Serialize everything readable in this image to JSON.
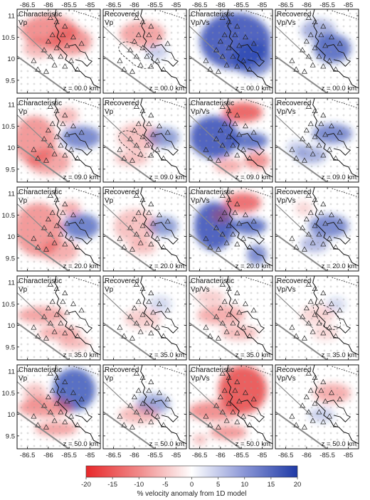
{
  "columns": [
    {
      "label_line1": "Characteristic",
      "label_line2": "Vp",
      "variant": "char_vp"
    },
    {
      "label_line1": "Recovered",
      "label_line2": "Vp",
      "variant": "rec_vp"
    },
    {
      "label_line1": "Characteristic",
      "label_line2": "Vp/Vs",
      "variant": "char_vpvs"
    },
    {
      "label_line1": "Recovered",
      "label_line2": "Vp/Vs",
      "variant": "rec_vpvs"
    }
  ],
  "rows": [
    {
      "depth_label": "z = 00.0 km"
    },
    {
      "depth_label": "z = 09.0 km"
    },
    {
      "depth_label": "z = 20.0 km"
    },
    {
      "depth_label": "z = 35.0 km"
    },
    {
      "depth_label": "z = 50.0 km"
    }
  ],
  "x_ticks": [
    {
      "value": -86.5,
      "label": "-86.5"
    },
    {
      "value": -86,
      "label": "-86"
    },
    {
      "value": -85.5,
      "label": "-85.5"
    },
    {
      "value": -85,
      "label": "-85"
    }
  ],
  "y_ticks": [
    {
      "value": 11,
      "label": "11"
    },
    {
      "value": 10.5,
      "label": "10.5"
    },
    {
      "value": 10,
      "label": "10"
    },
    {
      "value": 9.5,
      "label": "9.5"
    }
  ],
  "x_range": [
    -86.75,
    -84.75
  ],
  "y_range": [
    9.2,
    11.15
  ],
  "colorbar": {
    "ticks": [
      "-20",
      "-15",
      "-10",
      "-5",
      "0",
      "5",
      "10",
      "15",
      "20"
    ],
    "min": -20,
    "max": 20,
    "label": "% velocity anomaly from 1D model",
    "negative_color": "#e8282a",
    "positive_color": "#1f3aa6",
    "zero_color": "#ffffff"
  },
  "stations": [
    [
      -85.95,
      10.95
    ],
    [
      -85.8,
      10.85
    ],
    [
      -85.6,
      10.75
    ],
    [
      -85.65,
      10.55
    ],
    [
      -85.9,
      10.55
    ],
    [
      -85.4,
      10.5
    ],
    [
      -85.2,
      10.35
    ],
    [
      -85.55,
      10.3
    ],
    [
      -85.8,
      10.25
    ],
    [
      -86.1,
      10.2
    ],
    [
      -85.95,
      10.05
    ],
    [
      -85.7,
      10.05
    ],
    [
      -85.45,
      9.95
    ],
    [
      -85.6,
      9.82
    ],
    [
      -85.85,
      9.85
    ],
    [
      -86.05,
      9.7
    ],
    [
      -86.25,
      9.75
    ],
    [
      -86.35,
      9.95
    ],
    [
      -85.3,
      9.75
    ],
    [
      -86.0,
      10.4
    ]
  ]
}
